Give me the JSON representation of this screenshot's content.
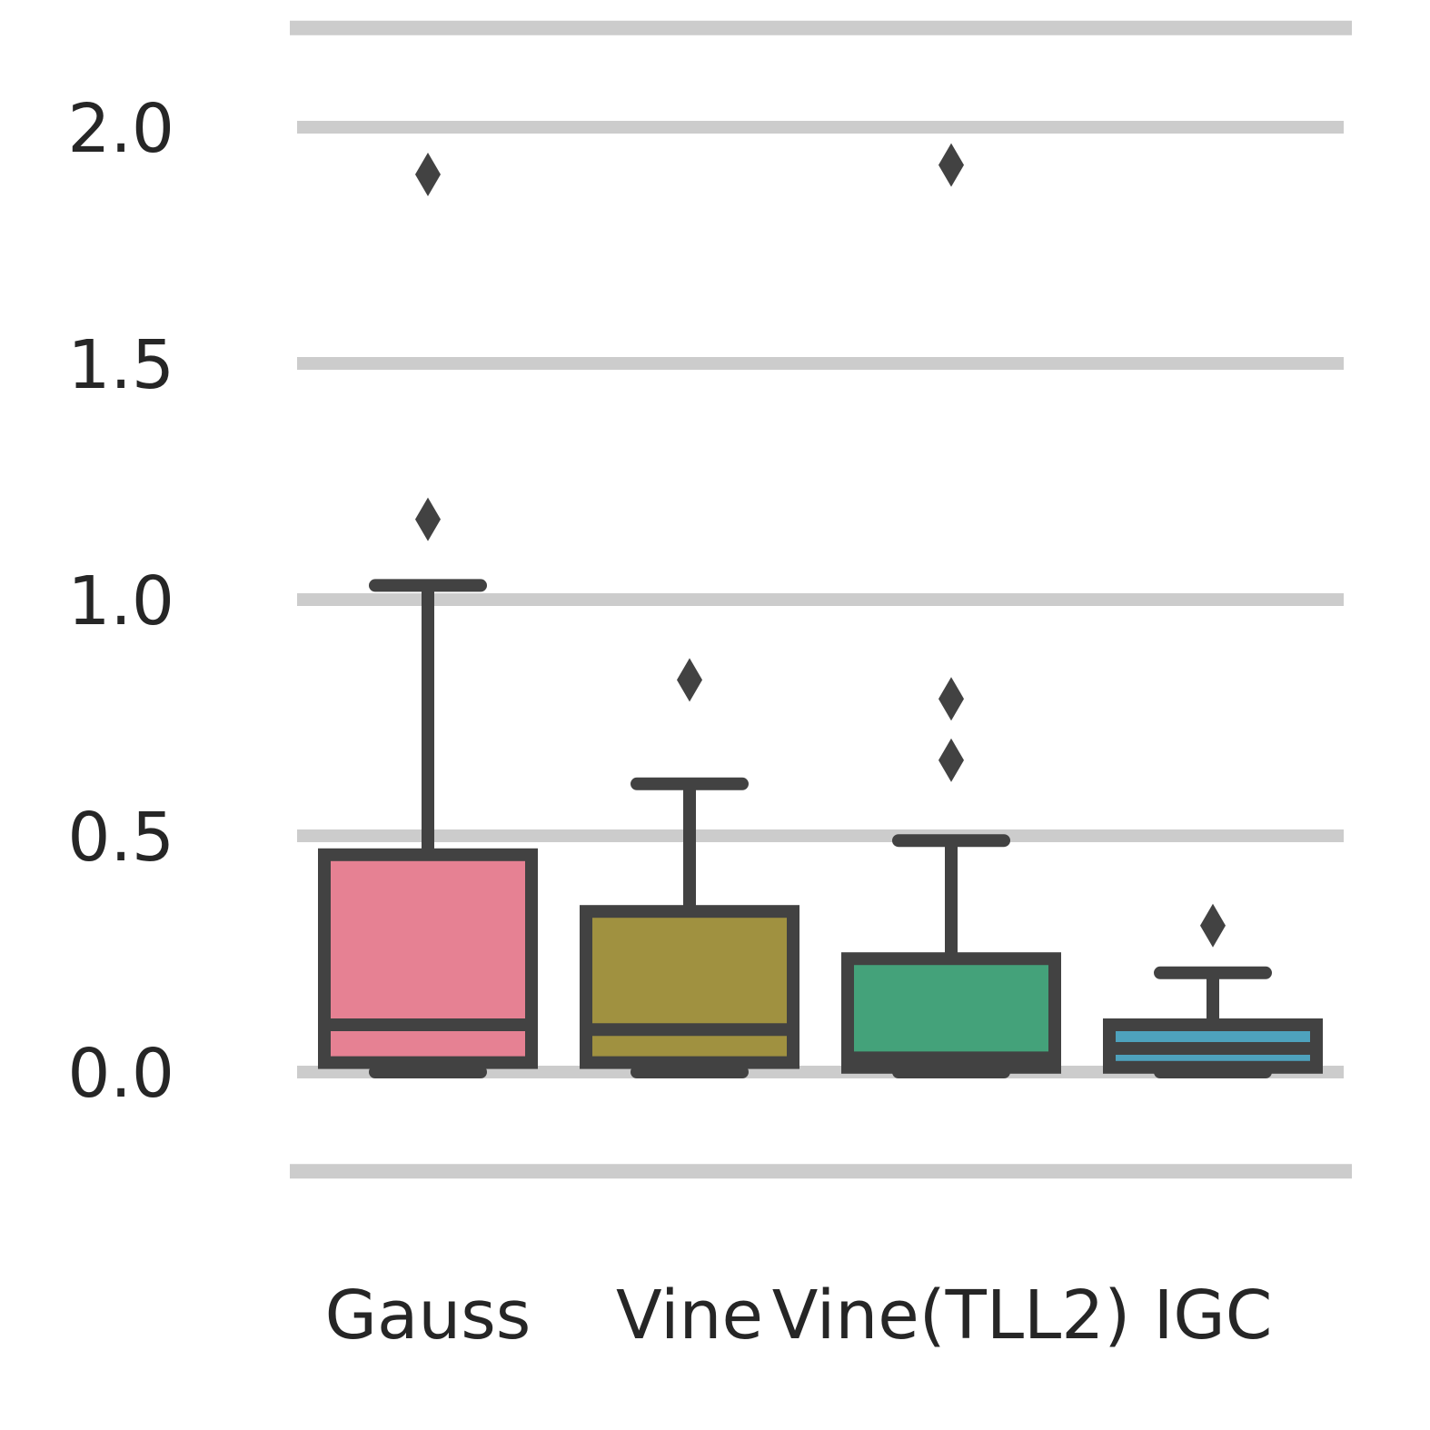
{
  "chart_data": {
    "type": "box",
    "title": "",
    "xlabel": "",
    "ylabel": "",
    "ylim": [
      -0.21,
      2.21
    ],
    "yticks": [
      "0.0",
      "0.5",
      "1.0",
      "1.5",
      "2.0"
    ],
    "grid": true,
    "legend": "none",
    "categories": [
      "Gauss",
      "Vine",
      "Vine(TLL2)",
      "IGC"
    ],
    "boxes": [
      {
        "category": "Gauss",
        "color": "#e68193",
        "whisker_low": 0.0,
        "q1": 0.02,
        "median": 0.1,
        "q3": 0.46,
        "whisker_high": 1.03,
        "outliers": [
          1.9,
          1.17
        ]
      },
      {
        "category": "Vine",
        "color": "#a09140",
        "whisker_low": 0.0,
        "q1": 0.02,
        "median": 0.09,
        "q3": 0.34,
        "whisker_high": 0.61,
        "outliers": [
          0.83
        ]
      },
      {
        "category": "Vine(TLL2)",
        "color": "#44a27a",
        "whisker_low": 0.0,
        "q1": 0.01,
        "median": 0.03,
        "q3": 0.24,
        "whisker_high": 0.49,
        "outliers": [
          1.92,
          0.79,
          0.66
        ]
      },
      {
        "category": "IGC",
        "color": "#4ea2bd",
        "whisker_low": 0.0,
        "q1": 0.01,
        "median": 0.05,
        "q3": 0.1,
        "whisker_high": 0.21,
        "outliers": [
          0.31
        ]
      }
    ],
    "colors": {
      "grid": "#cccccc",
      "line": "#424242",
      "text": "#262626"
    }
  }
}
